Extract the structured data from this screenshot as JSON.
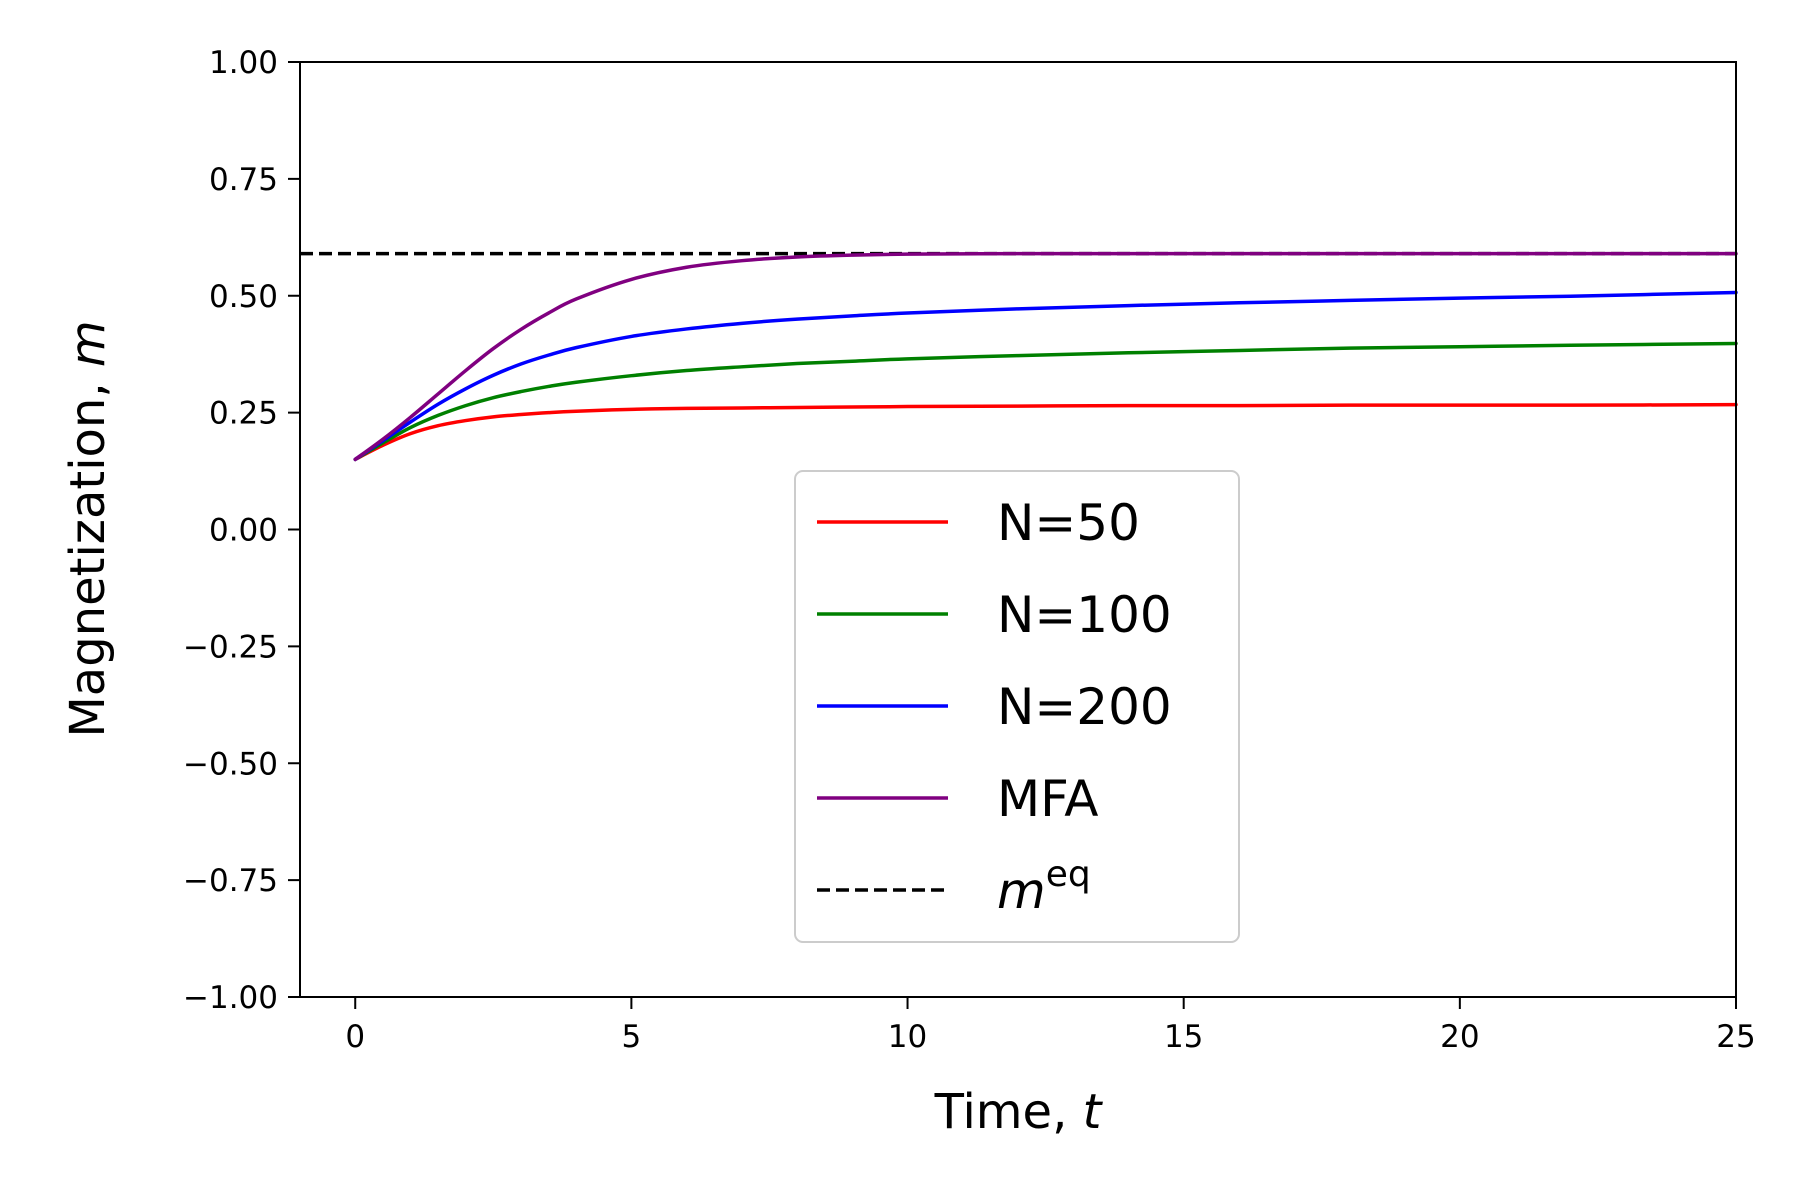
{
  "chart_data": {
    "type": "line",
    "xlabel": "Time, ",
    "xlabel_var": "t",
    "ylabel": "Magnetization, ",
    "ylabel_var": "m",
    "xlim": [
      -1,
      25
    ],
    "ylim": [
      -1.0,
      1.0
    ],
    "xticks": [
      0,
      5,
      10,
      15,
      20,
      25
    ],
    "xtick_labels": [
      "0",
      "5",
      "10",
      "15",
      "20",
      "25"
    ],
    "yticks": [
      -1.0,
      -0.75,
      -0.5,
      -0.25,
      0.0,
      0.25,
      0.5,
      0.75,
      1.0
    ],
    "ytick_labels": [
      "−1.00",
      "−0.75",
      "−0.50",
      "−0.25",
      "0.00",
      "0.25",
      "0.50",
      "0.75",
      "1.00"
    ],
    "grid": false,
    "legend_position": "lower-center",
    "x": [
      0,
      0.5,
      1,
      1.5,
      2,
      2.5,
      3,
      3.5,
      4,
      5,
      6,
      7,
      8,
      9,
      10,
      12,
      14,
      16,
      18,
      20,
      22,
      25
    ],
    "series": [
      {
        "name": "N=50",
        "color": "#ff0000",
        "style": "solid",
        "values": [
          0.15,
          0.18,
          0.205,
          0.222,
          0.233,
          0.241,
          0.246,
          0.25,
          0.253,
          0.257,
          0.259,
          0.26,
          0.261,
          0.262,
          0.263,
          0.264,
          0.265,
          0.265,
          0.266,
          0.266,
          0.266,
          0.267
        ]
      },
      {
        "name": "N=100",
        "color": "#008000",
        "style": "solid",
        "values": [
          0.15,
          0.185,
          0.218,
          0.244,
          0.265,
          0.282,
          0.295,
          0.306,
          0.315,
          0.329,
          0.34,
          0.348,
          0.355,
          0.36,
          0.365,
          0.372,
          0.378,
          0.383,
          0.388,
          0.391,
          0.394,
          0.398
        ]
      },
      {
        "name": "N=200",
        "color": "#0000ff",
        "style": "solid",
        "values": [
          0.15,
          0.19,
          0.23,
          0.268,
          0.301,
          0.33,
          0.354,
          0.373,
          0.389,
          0.413,
          0.429,
          0.441,
          0.45,
          0.457,
          0.463,
          0.472,
          0.479,
          0.485,
          0.49,
          0.495,
          0.499,
          0.507
        ]
      },
      {
        "name": "MFA",
        "color": "#800080",
        "style": "solid",
        "values": [
          0.15,
          0.193,
          0.24,
          0.29,
          0.34,
          0.387,
          0.428,
          0.463,
          0.493,
          0.535,
          0.561,
          0.575,
          0.583,
          0.587,
          0.589,
          0.59,
          0.59,
          0.59,
          0.59,
          0.59,
          0.59,
          0.59
        ]
      }
    ],
    "reference_line": {
      "name": "m",
      "name_sup": "eq",
      "color": "#000000",
      "style": "dashed",
      "y": 0.59
    }
  }
}
